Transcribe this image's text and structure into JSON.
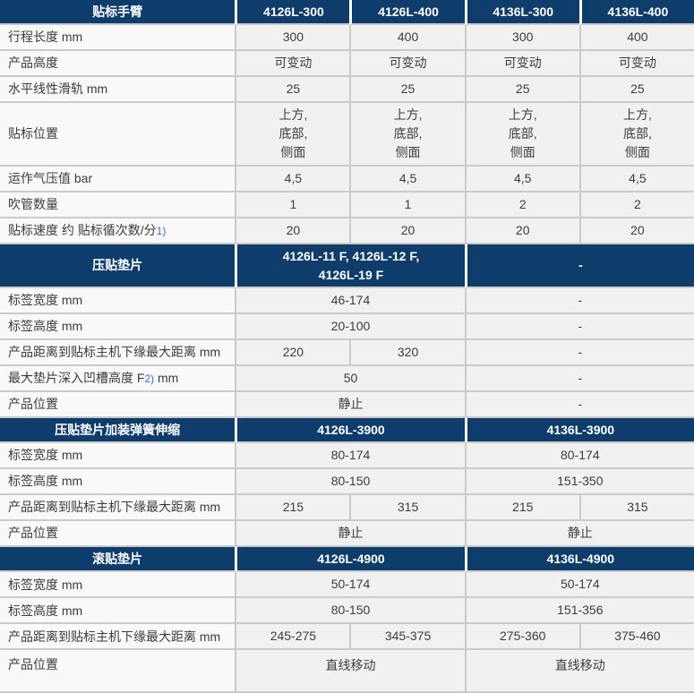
{
  "colors": {
    "section_header_bg": "#0e3d6c",
    "section_header_text": "#ffffff",
    "label_cell_bg": "#f9f9f9",
    "value_cell_bg": "#f1f1f1",
    "grid_line": "#cbcbcb",
    "footnote_ref_color": "#3c6dc5",
    "body_text": "#3c3c3c"
  },
  "table": {
    "sections": [
      {
        "header": {
          "label": "贴标手臂",
          "cells": [
            {
              "text": "4126L-300",
              "span": 1
            },
            {
              "text": "4126L-400",
              "span": 1
            },
            {
              "text": "4136L-300",
              "span": 1
            },
            {
              "text": "4136L-400",
              "span": 1
            }
          ]
        },
        "rows": [
          {
            "label": "行程长度 mm",
            "cells": [
              {
                "text": "300"
              },
              {
                "text": "400"
              },
              {
                "text": "300"
              },
              {
                "text": "400"
              }
            ]
          },
          {
            "label": "产品高度",
            "cells": [
              {
                "text": "可变动"
              },
              {
                "text": "可变动"
              },
              {
                "text": "可变动"
              },
              {
                "text": "可变动"
              }
            ]
          },
          {
            "label": "水平线性滑轨 mm",
            "cells": [
              {
                "text": "25"
              },
              {
                "text": "25"
              },
              {
                "text": "25"
              },
              {
                "text": "25"
              }
            ]
          },
          {
            "label": "贴标位置",
            "cells": [
              {
                "text": "上方,\n底部,\n侧面"
              },
              {
                "text": "上方,\n底部,\n侧面"
              },
              {
                "text": "上方,\n底部,\n侧面"
              },
              {
                "text": "上方,\n底部,\n侧面"
              }
            ]
          },
          {
            "label": "运作气压值 bar",
            "cells": [
              {
                "text": "4,5"
              },
              {
                "text": "4,5"
              },
              {
                "text": "4,5"
              },
              {
                "text": "4,5"
              }
            ]
          },
          {
            "label": "吹管数量",
            "cells": [
              {
                "text": "1"
              },
              {
                "text": "1"
              },
              {
                "text": "2"
              },
              {
                "text": "2"
              }
            ]
          },
          {
            "label": "贴标速度 约 贴标循次数/分",
            "label_sup": "1)",
            "cells": [
              {
                "text": "20"
              },
              {
                "text": "20"
              },
              {
                "text": "20"
              },
              {
                "text": "20"
              }
            ]
          }
        ]
      },
      {
        "header": {
          "label": "压贴垫片",
          "cells": [
            {
              "text": "4126L-11 F, 4126L-12 F,\n4126L-19 F",
              "span": 2
            },
            {
              "text": "-",
              "span": 2
            }
          ]
        },
        "rows": [
          {
            "label": "标签宽度 mm",
            "cells": [
              {
                "text": "46-174",
                "span": 2
              },
              {
                "text": "-",
                "span": 2
              }
            ]
          },
          {
            "label": "标签高度 mm",
            "cells": [
              {
                "text": "20-100",
                "span": 2
              },
              {
                "text": "-",
                "span": 2
              }
            ]
          },
          {
            "label": "产品距离到贴标主机下缘最大距离 mm",
            "cells": [
              {
                "text": "220"
              },
              {
                "text": "320"
              },
              {
                "text": "-",
                "span": 2
              }
            ]
          },
          {
            "label": "最大垫片深入凹槽高度 F",
            "label_sup": "2)",
            "label_suffix": " mm",
            "cells": [
              {
                "text": "50",
                "span": 2
              },
              {
                "text": "-",
                "span": 2
              }
            ]
          },
          {
            "label": "产品位置",
            "cells": [
              {
                "text": "静止",
                "span": 2
              },
              {
                "text": "-",
                "span": 2
              }
            ]
          }
        ]
      },
      {
        "header": {
          "label": "压贴垫片加装弹簧伸缩",
          "cells": [
            {
              "text": "4126L-3900",
              "span": 2
            },
            {
              "text": "4136L-3900",
              "span": 2
            }
          ]
        },
        "rows": [
          {
            "label": "标签宽度 mm",
            "cells": [
              {
                "text": "80-174",
                "span": 2
              },
              {
                "text": "80-174",
                "span": 2
              }
            ]
          },
          {
            "label": "标签高度 mm",
            "cells": [
              {
                "text": "80-150",
                "span": 2
              },
              {
                "text": "151-350",
                "span": 2
              }
            ]
          },
          {
            "label": "产品距离到贴标主机下缘最大距离 mm",
            "cells": [
              {
                "text": "215"
              },
              {
                "text": "315"
              },
              {
                "text": "215"
              },
              {
                "text": "315"
              }
            ]
          },
          {
            "label": "产品位置",
            "cells": [
              {
                "text": "静止",
                "span": 2
              },
              {
                "text": "静止",
                "span": 2
              }
            ]
          }
        ]
      },
      {
        "header": {
          "label": "滚贴垫片",
          "cells": [
            {
              "text": "4126L-4900",
              "span": 2
            },
            {
              "text": "4136L-4900",
              "span": 2
            }
          ]
        },
        "rows": [
          {
            "label": "标签宽度 mm",
            "cells": [
              {
                "text": "50-174",
                "span": 2
              },
              {
                "text": "50-174",
                "span": 2
              }
            ]
          },
          {
            "label": "标签高度 mm",
            "cells": [
              {
                "text": "80-150",
                "span": 2
              },
              {
                "text": "151-356",
                "span": 2
              }
            ]
          },
          {
            "label": "产品距离到贴标主机下缘最大距离 mm",
            "cells": [
              {
                "text": "245-275"
              },
              {
                "text": "345-375"
              },
              {
                "text": "275-360"
              },
              {
                "text": "375-460"
              }
            ]
          },
          {
            "label": "产品位置",
            "cells": [
              {
                "text": "直线移动",
                "span": 2
              },
              {
                "text": "直线移动",
                "span": 2
              }
            ]
          }
        ]
      }
    ]
  }
}
